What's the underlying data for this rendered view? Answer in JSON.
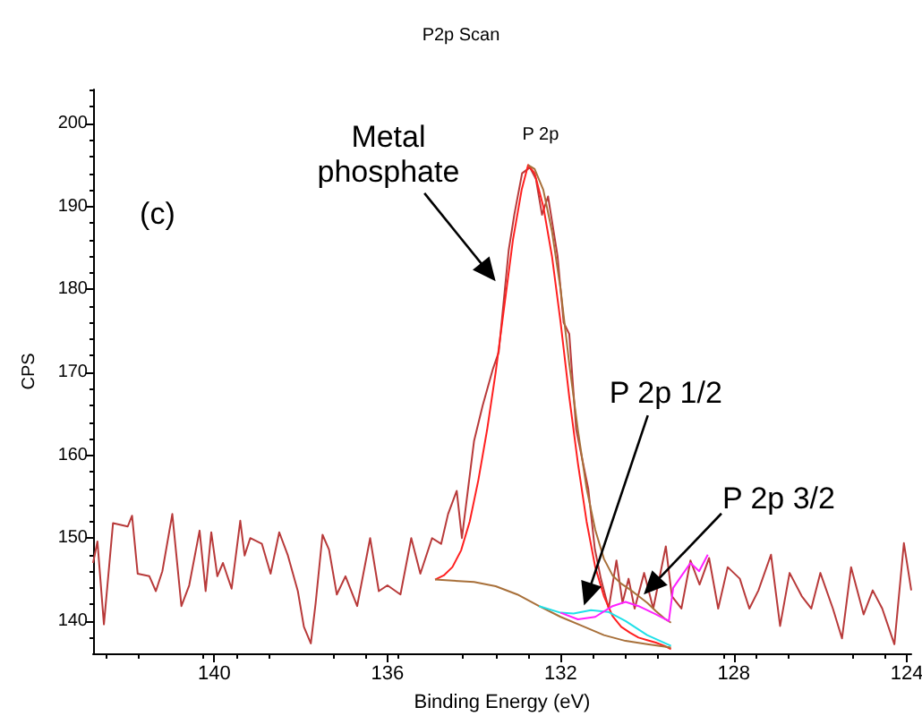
{
  "chart_data": {
    "type": "line",
    "title": "P2p Scan",
    "xlabel": "Binding Energy (eV)",
    "ylabel": "CPS",
    "xlim": [
      142.8,
      123.9
    ],
    "xticks": [
      140,
      136,
      132,
      128,
      124
    ],
    "ylim": [
      136.1,
      204.1
    ],
    "yticks": [
      140,
      150,
      160,
      170,
      180,
      190,
      200
    ],
    "grid": false,
    "marker": "none",
    "line_style": "solid",
    "series": [
      {
        "color": "#b83a3a",
        "x": [
          142.8,
          142.7,
          142.55,
          142.34,
          142.0,
          141.9,
          141.77,
          141.5,
          141.35,
          141.2,
          140.97,
          140.76,
          140.58,
          140.34,
          140.2,
          140.07,
          139.93,
          139.8,
          139.6,
          139.4,
          139.3,
          139.17,
          138.9,
          138.7,
          138.5,
          138.3,
          138.07,
          137.93,
          137.77,
          137.66,
          137.5,
          137.35,
          137.17,
          136.97,
          136.7,
          136.4,
          136.2,
          136.0,
          135.7,
          135.45,
          135.24,
          134.97,
          134.76,
          134.6,
          134.4,
          134.28,
          134.0,
          133.8,
          133.57,
          133.43,
          133.2,
          133.07,
          132.89,
          132.71,
          132.57,
          132.43,
          132.29,
          132.07,
          131.93,
          131.8,
          131.64,
          131.5,
          131.36,
          131.21,
          131.07,
          130.89,
          130.71,
          130.57,
          130.43,
          130.29,
          130.07,
          129.86,
          129.57,
          129.43,
          129.21,
          129.0,
          128.79,
          128.57,
          128.36,
          128.14,
          127.86,
          127.64,
          127.43,
          127.14,
          126.93,
          126.71,
          126.43,
          126.21,
          126.0,
          125.71,
          125.5,
          125.29,
          125.0,
          124.79,
          124.57,
          124.29,
          124.07,
          123.9
        ],
        "values": [
          147,
          149.6,
          139.6,
          151.8,
          151.4,
          152.7,
          145.7,
          145.4,
          143.6,
          146,
          152.9,
          141.8,
          144.3,
          150.9,
          143.6,
          150.7,
          145.4,
          147,
          143.9,
          152.1,
          147.9,
          150,
          149.3,
          145.7,
          150.7,
          147.9,
          143.6,
          139.3,
          137.3,
          142.1,
          150.4,
          148.6,
          143.2,
          145.4,
          141.8,
          150,
          143.6,
          144.3,
          143.2,
          150,
          145.7,
          150,
          149.3,
          152.9,
          155.7,
          150,
          161.7,
          166,
          170.3,
          172.4,
          184.7,
          189,
          194,
          194.7,
          193.3,
          189,
          191.2,
          184,
          176,
          174.6,
          163.1,
          159.5,
          155.9,
          148.7,
          145.1,
          141.5,
          147.3,
          142.2,
          145.1,
          141.5,
          145.8,
          141.5,
          149,
          143,
          141.5,
          147.3,
          144.4,
          147.6,
          141.5,
          146.5,
          145.1,
          141.5,
          143.7,
          148,
          139.4,
          145.8,
          143,
          141.5,
          145.8,
          141.5,
          137.9,
          146.5,
          140.8,
          143.7,
          141.5,
          137.2,
          149.4,
          143.7
        ]
      },
      {
        "color": "#ff2020",
        "x": [
          134.9,
          134.7,
          134.5,
          134.3,
          134.1,
          133.9,
          133.7,
          133.5,
          133.3,
          133.1,
          132.9,
          132.75,
          132.6,
          132.4,
          132.2,
          132.0,
          131.8,
          131.6,
          131.4,
          131.2,
          131.0,
          130.8,
          130.6,
          130.4,
          130.2,
          130.0,
          129.8,
          129.6,
          129.45
        ],
        "values": [
          145,
          145.5,
          146.5,
          148.5,
          152,
          157,
          163,
          170,
          178,
          186,
          192,
          195,
          194,
          190,
          184,
          176,
          167,
          159,
          152,
          146.5,
          143,
          140.6,
          139.3,
          138.6,
          138,
          137.7,
          137.4,
          137,
          136.6
        ]
      },
      {
        "color": "#a8703a",
        "x": [
          132.75,
          132.6,
          132.4,
          132.2,
          132.0,
          131.8,
          131.6,
          131.4,
          131.2,
          131.0,
          130.8,
          130.6,
          130.4,
          130.2,
          130.0,
          129.8,
          129.6,
          129.45
        ],
        "values": [
          195,
          194.5,
          192,
          187,
          180,
          171,
          163,
          156,
          151,
          147.5,
          145.5,
          144.5,
          143.8,
          143,
          142.2,
          141.2,
          140.3,
          139.8
        ]
      },
      {
        "color": "#a8703a",
        "x": [
          134.9,
          134.0,
          133.5,
          133.0,
          132.5,
          132.0,
          131.5,
          131.0,
          130.5,
          130.0,
          129.45
        ],
        "values": [
          145,
          144.7,
          144.2,
          143.2,
          141.8,
          140.5,
          139.4,
          138.3,
          137.6,
          137.2,
          136.8
        ]
      },
      {
        "color": "#20e0e8",
        "x": [
          132.5,
          132.0,
          131.7,
          131.3,
          130.9,
          130.5,
          130.0,
          129.45
        ],
        "values": [
          141.8,
          141,
          140.9,
          141.3,
          141.1,
          140,
          138.3,
          137
        ]
      },
      {
        "color": "#ff20ff",
        "x": [
          132.0,
          131.6,
          131.2,
          130.8,
          130.5,
          130.2,
          129.8,
          129.5,
          129.4,
          129.2,
          129.0,
          128.8,
          128.6
        ],
        "values": [
          141,
          140.2,
          140.5,
          141.8,
          142.3,
          141.8,
          140.8,
          140,
          144,
          145.5,
          147,
          146,
          148
        ]
      }
    ],
    "annotations": [
      "(c)",
      "P 2p",
      "Metal\nphosphate",
      "P 2p 1/2",
      {
        "text": "P 2p 3/2",
        "x": 130.08,
        "y": 143.2
      }
    ]
  }
}
